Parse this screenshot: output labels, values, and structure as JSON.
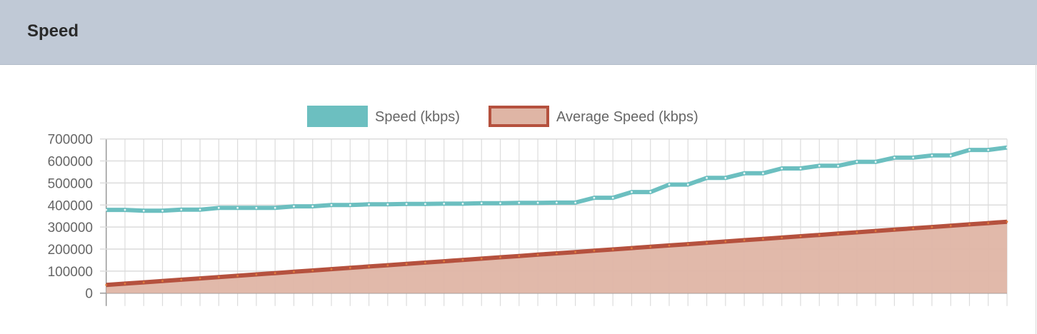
{
  "header": {
    "title": "Speed"
  },
  "chart_data": {
    "type": "line",
    "title": "",
    "xlabel": "",
    "ylabel": "",
    "ylim": [
      0,
      700000
    ],
    "yticks": [
      "700000",
      "600000",
      "500000",
      "400000",
      "300000",
      "200000",
      "100000",
      "0"
    ],
    "grid": true,
    "legend": "top",
    "series": [
      {
        "name": "Speed (kbps)",
        "color": "#6cbfc0",
        "fill": false,
        "values": [
          378000,
          378000,
          374000,
          374000,
          379000,
          379000,
          387000,
          387000,
          387000,
          387000,
          394000,
          394000,
          400000,
          400000,
          403000,
          403000,
          405000,
          405000,
          406000,
          406000,
          408000,
          408000,
          410000,
          410000,
          411000,
          411000,
          433000,
          433000,
          459000,
          459000,
          493000,
          493000,
          523000,
          523000,
          544000,
          544000,
          566000,
          566000,
          578000,
          578000,
          596000,
          596000,
          615000,
          615000,
          625000,
          625000,
          650000,
          650000,
          661000
        ]
      },
      {
        "name": "Average Speed (kbps)",
        "color": "#b5513e",
        "fill": true,
        "fill_color": "#dfb5a5",
        "values": [
          37000,
          42980,
          48960,
          54940,
          60920,
          66900,
          72880,
          78860,
          84840,
          90820,
          96800,
          102780,
          108760,
          114740,
          120720,
          126700,
          132680,
          138660,
          144640,
          150620,
          156600,
          162580,
          168560,
          174540,
          180520,
          186500,
          192480,
          198460,
          204440,
          210420,
          216400,
          222380,
          228360,
          234340,
          240320,
          246300,
          252280,
          258260,
          264240,
          270220,
          276200,
          282180,
          288160,
          294140,
          300120,
          306100,
          312080,
          318060,
          324040
        ]
      }
    ]
  }
}
